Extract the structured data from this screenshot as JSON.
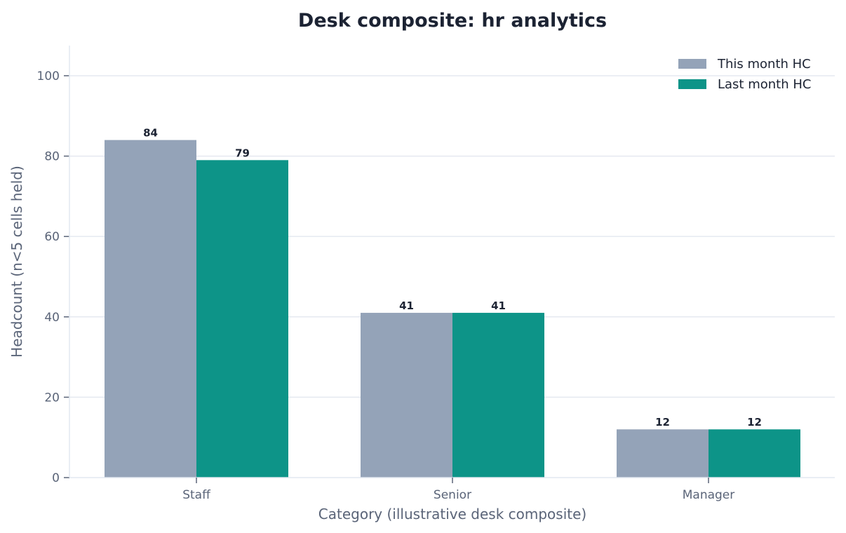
{
  "chart_data": {
    "type": "bar",
    "title": "Desk composite: hr analytics",
    "xlabel": "Category (illustrative desk composite)",
    "ylabel": "Headcount (n<5 cells held)",
    "categories": [
      "Staff",
      "Senior",
      "Manager"
    ],
    "series": [
      {
        "name": "This month HC",
        "color": "#94a3b8",
        "values": [
          84,
          41,
          12
        ]
      },
      {
        "name": "Last month HC",
        "color": "#0d9488",
        "values": [
          79,
          41,
          12
        ]
      }
    ],
    "ylim": [
      0,
      107.5
    ],
    "yticks": [
      0,
      20,
      40,
      60,
      80,
      100
    ],
    "grid": true,
    "legend_position": "top-right",
    "colors": {
      "grid": "#e5e9f0",
      "axis": "#e2e8f0",
      "text": "#5a6478",
      "title": "#1c2333"
    }
  }
}
